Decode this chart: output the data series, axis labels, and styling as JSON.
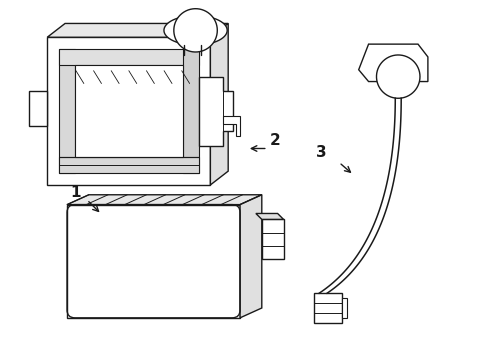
{
  "background_color": "#ffffff",
  "line_color": "#1a1a1a",
  "figsize": [
    4.89,
    3.6
  ],
  "dpi": 100,
  "label1": "1",
  "label2": "2",
  "label3": "3"
}
